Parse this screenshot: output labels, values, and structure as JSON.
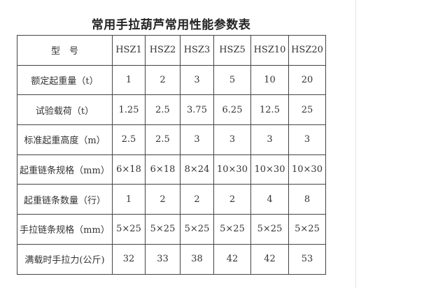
{
  "title": "常用手拉葫芦常用性能参数表",
  "table": {
    "header": {
      "label": "型　号",
      "models": [
        "HSZ1",
        "HSZ2",
        "HSZ3",
        "HSZ5",
        "HSZ10",
        "HSZ20"
      ]
    },
    "rows": [
      {
        "label": "额定起重量（t）",
        "values": [
          "1",
          "2",
          "3",
          "5",
          "10",
          "20"
        ]
      },
      {
        "label": "试验载荷（t）",
        "values": [
          "1.25",
          "2.5",
          "3.75",
          "6.25",
          "12.5",
          "25"
        ]
      },
      {
        "label": "标准起重高度（m）",
        "values": [
          "2.5",
          "2.5",
          "3",
          "3",
          "3",
          "3"
        ]
      },
      {
        "label": "起重链条规格（mm）",
        "values": [
          "6×18",
          "6×18",
          "8×24",
          "10×30",
          "10×30",
          "10×30"
        ]
      },
      {
        "label": "起重链条数量（行）",
        "values": [
          "1",
          "2",
          "2",
          "2",
          "4",
          "8"
        ]
      },
      {
        "label": "手拉链条规格（mm）",
        "values": [
          "5×25",
          "5×25",
          "5×25",
          "5×25",
          "5×25",
          "5×25"
        ]
      },
      {
        "label": "满载时手拉力(公斤)",
        "values": [
          "32",
          "33",
          "38",
          "42",
          "42",
          "53"
        ]
      }
    ]
  }
}
